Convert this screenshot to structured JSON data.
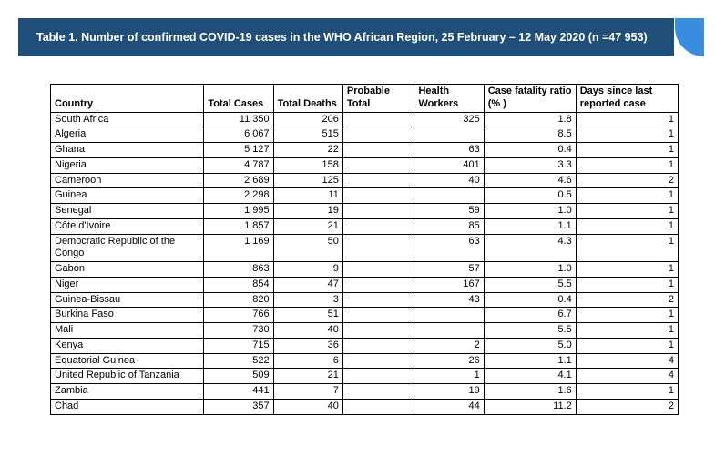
{
  "title": "Table 1. Number of confirmed COVID-19 cases in the WHO African Region, 25 February – 12 May 2020 (n =47 953)",
  "colors": {
    "titleBg": "#1f4e79",
    "titleAccent": "#3a8dde",
    "titleText": "#ffffff",
    "border": "#000000",
    "pageBg": "#ffffff"
  },
  "columns": [
    {
      "key": "country",
      "label": "Country",
      "cls": "col-country",
      "numeric": false
    },
    {
      "key": "cases",
      "label": "Total Cases",
      "cls": "col-cases",
      "numeric": true
    },
    {
      "key": "deaths",
      "label": "Total Deaths",
      "cls": "col-deaths",
      "numeric": true
    },
    {
      "key": "probable",
      "label": "Probable Total",
      "cls": "col-probable",
      "numeric": true
    },
    {
      "key": "hw",
      "label": "Health Workers",
      "cls": "col-hw",
      "numeric": true
    },
    {
      "key": "cfr",
      "label": "Case fatality ratio (% )",
      "cls": "col-cfr",
      "numeric": true
    },
    {
      "key": "days",
      "label": "Days since last reported case",
      "cls": "col-days",
      "numeric": true
    }
  ],
  "rows": [
    {
      "country": "South Africa",
      "cases": "11 350",
      "deaths": "206",
      "probable": "",
      "hw": "325",
      "cfr": "1.8",
      "days": "1"
    },
    {
      "country": "Algeria",
      "cases": "6 067",
      "deaths": "515",
      "probable": "",
      "hw": "",
      "cfr": "8.5",
      "days": "1"
    },
    {
      "country": "Ghana",
      "cases": "5 127",
      "deaths": "22",
      "probable": "",
      "hw": "63",
      "cfr": "0.4",
      "days": "1"
    },
    {
      "country": "Nigeria",
      "cases": "4 787",
      "deaths": "158",
      "probable": "",
      "hw": "401",
      "cfr": "3.3",
      "days": "1"
    },
    {
      "country": "Cameroon",
      "cases": "2 689",
      "deaths": "125",
      "probable": "",
      "hw": "40",
      "cfr": "4.6",
      "days": "2"
    },
    {
      "country": "Guinea",
      "cases": "2 298",
      "deaths": "11",
      "probable": "",
      "hw": "",
      "cfr": "0.5",
      "days": "1"
    },
    {
      "country": "Senegal",
      "cases": "1 995",
      "deaths": "19",
      "probable": "",
      "hw": "59",
      "cfr": "1.0",
      "days": "1"
    },
    {
      "country": "Côte d'Ivoire",
      "cases": "1 857",
      "deaths": "21",
      "probable": "",
      "hw": "85",
      "cfr": "1.1",
      "days": "1"
    },
    {
      "country": "Democratic Republic of the Congo",
      "cases": "1 169",
      "deaths": "50",
      "probable": "",
      "hw": "63",
      "cfr": "4.3",
      "days": "1"
    },
    {
      "country": "Gabon",
      "cases": "863",
      "deaths": "9",
      "probable": "",
      "hw": "57",
      "cfr": "1.0",
      "days": "1"
    },
    {
      "country": "Niger",
      "cases": "854",
      "deaths": "47",
      "probable": "",
      "hw": "167",
      "cfr": "5.5",
      "days": "1"
    },
    {
      "country": "Guinea-Bissau",
      "cases": "820",
      "deaths": "3",
      "probable": "",
      "hw": "43",
      "cfr": "0.4",
      "days": "2"
    },
    {
      "country": "Burkina Faso",
      "cases": "766",
      "deaths": "51",
      "probable": "",
      "hw": "",
      "cfr": "6.7",
      "days": "1"
    },
    {
      "country": "Mali",
      "cases": "730",
      "deaths": "40",
      "probable": "",
      "hw": "",
      "cfr": "5.5",
      "days": "1"
    },
    {
      "country": "Kenya",
      "cases": "715",
      "deaths": "36",
      "probable": "",
      "hw": "2",
      "cfr": "5.0",
      "days": "1"
    },
    {
      "country": "Equatorial Guinea",
      "cases": "522",
      "deaths": "6",
      "probable": "",
      "hw": "26",
      "cfr": "1.1",
      "days": "4"
    },
    {
      "country": "United Republic of Tanzania",
      "cases": "509",
      "deaths": "21",
      "probable": "",
      "hw": "1",
      "cfr": "4.1",
      "days": "4"
    },
    {
      "country": "Zambia",
      "cases": "441",
      "deaths": "7",
      "probable": "",
      "hw": "19",
      "cfr": "1.6",
      "days": "1"
    },
    {
      "country": "Chad",
      "cases": "357",
      "deaths": "40",
      "probable": "",
      "hw": "44",
      "cfr": "11.2",
      "days": "2"
    }
  ]
}
